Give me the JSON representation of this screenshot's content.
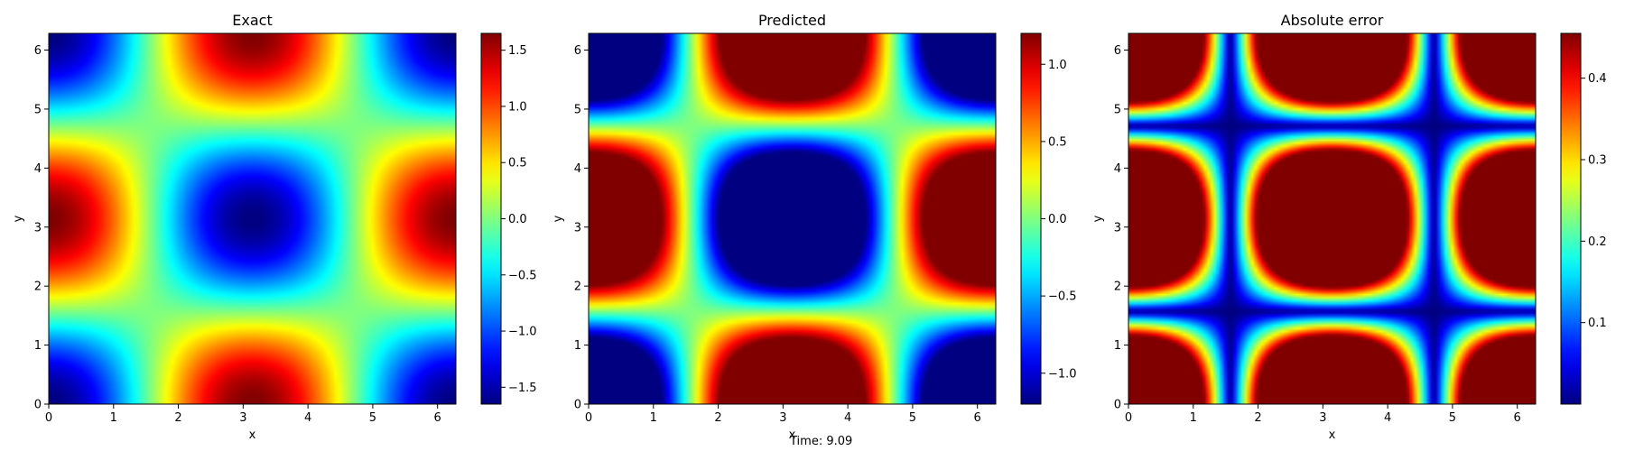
{
  "figure": {
    "footer_text": "Time: 9.09"
  },
  "chart_data": [
    {
      "type": "heatmap",
      "title": "Exact",
      "xlabel": "x",
      "ylabel": "y",
      "xlim": [
        0,
        6.283
      ],
      "ylim": [
        0,
        6.283
      ],
      "xticks": [
        0,
        1,
        2,
        3,
        4,
        5,
        6
      ],
      "yticks": [
        0,
        1,
        2,
        3,
        4,
        5,
        6
      ],
      "field": "exact",
      "colormap": "jet",
      "colorbar": {
        "min": -1.65,
        "max": 1.65,
        "ticks": [
          -1.5,
          -1.0,
          -0.5,
          0.0,
          0.5,
          1.0,
          1.5
        ],
        "tick_labels": [
          "−1.5",
          "−1.0",
          "−0.5",
          "0.0",
          "0.5",
          "1.0",
          "1.5"
        ]
      }
    },
    {
      "type": "heatmap",
      "title": "Predicted",
      "xlabel": "x",
      "ylabel": "y",
      "xlim": [
        0,
        6.283
      ],
      "ylim": [
        0,
        6.283
      ],
      "xticks": [
        0,
        1,
        2,
        3,
        4,
        5,
        6
      ],
      "yticks": [
        0,
        1,
        2,
        3,
        4,
        5,
        6
      ],
      "field": "predicted",
      "colormap": "jet",
      "colorbar": {
        "min": -1.2,
        "max": 1.2,
        "ticks": [
          -1.0,
          -0.5,
          0.0,
          0.5,
          1.0
        ],
        "tick_labels": [
          "−1.0",
          "−0.5",
          "0.0",
          "0.5",
          "1.0"
        ]
      }
    },
    {
      "type": "heatmap",
      "title": "Absolute error",
      "xlabel": "x",
      "ylabel": "y",
      "xlim": [
        0,
        6.283
      ],
      "ylim": [
        0,
        6.283
      ],
      "xticks": [
        0,
        1,
        2,
        3,
        4,
        5,
        6
      ],
      "yticks": [
        0,
        1,
        2,
        3,
        4,
        5,
        6
      ],
      "field": "abs_error",
      "colormap": "jet",
      "colorbar": {
        "min": 0.0,
        "max": 0.455,
        "ticks": [
          0.1,
          0.2,
          0.3,
          0.4
        ],
        "tick_labels": [
          "0.1",
          "0.2",
          "0.3",
          "0.4"
        ]
      }
    }
  ]
}
